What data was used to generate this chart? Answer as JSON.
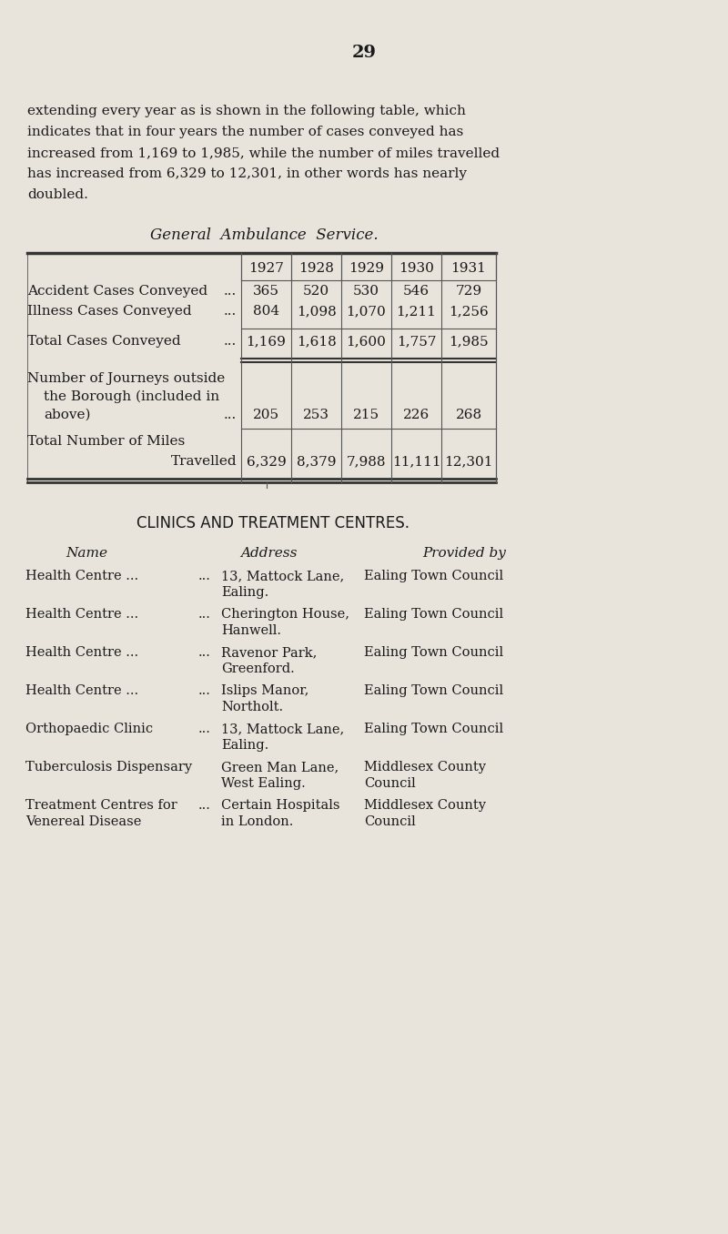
{
  "page_number": "29",
  "bg_color": "#e8e4dc",
  "text_color": "#1a1a1a",
  "intro_text": "extending every year as is shown in the following table, which\nindicates that in four years the number of cases conveyed has\nincreased from 1,169 to 1,985, while the number of miles travelled\nhas increased from 6,329 to 12,301, in other words has nearly\ndoubled.",
  "table_title": "General  Ambulance  Service.",
  "table_years": [
    "1927",
    "1928",
    "1929",
    "1930",
    "1931"
  ],
  "table_rows": [
    {
      "label": "Accident Cases Conveyed",
      "label_suffix": "...",
      "values": [
        "365",
        "520",
        "530",
        "546",
        "729"
      ]
    },
    {
      "label": "Illness Cases Conveyed",
      "label_suffix": "...",
      "values": [
        "804",
        "1,098",
        "1,070",
        "1,211",
        "1,256"
      ]
    },
    {
      "label": "Total Cases Conveyed",
      "label_suffix": "...",
      "values": [
        "1,169",
        "1,618",
        "1,600",
        "1,757",
        "1,985"
      ]
    },
    {
      "label": "Number of Journeys outside\n  the Borough (included in\n  above)",
      "label_suffix": "...",
      "values": [
        "205",
        "253",
        "215",
        "226",
        "268"
      ]
    },
    {
      "label": "Total Number of Miles\n                          Travelled",
      "label_suffix": "",
      "values": [
        "6,329",
        "8,379",
        "7,988",
        "11,111",
        "12,301"
      ]
    }
  ],
  "clinics_title": "CLINICS AND TREATMENT CENTRES.",
  "clinics_headers": [
    "Name",
    "Address",
    "Provided by"
  ],
  "clinics_rows": [
    {
      "name": "Health Centre ...",
      "name2": "",
      "dots": "...",
      "address": "13, Mattock Lane,\n    Ealing.",
      "provided_by": "Ealing Town Council"
    },
    {
      "name": "Health Centre ...",
      "name2": "",
      "dots": "...",
      "address": "Cherington House,\n    Hanwell.",
      "provided_by": "Ealing Town Council"
    },
    {
      "name": "Health Centre ...",
      "name2": "",
      "dots": "...",
      "address": "Ravenor Park,\n    Greenford.",
      "provided_by": "Ealing Town Council"
    },
    {
      "name": "Health Centre ...",
      "name2": "",
      "dots": "...",
      "address": "Islips Manor,\n    Northolt.",
      "provided_by": "Ealing Town Council"
    },
    {
      "name": "Orthopaedic Clinic",
      "name2": "",
      "dots": "...",
      "address": "13, Mattock Lane,\n    Ealing.",
      "provided_by": "Ealing Town Council"
    },
    {
      "name": "Tuberculosis Dispensary",
      "name2": "",
      "dots": "",
      "address": "Green Man Lane,\n    West Ealing.",
      "provided_by": "Middlesex County\n    Council"
    },
    {
      "name": "Treatment Centres for\n  Venereal Disease",
      "name2": "",
      "dots": "...",
      "address": "Certain Hospitals\n    in London.",
      "provided_by": "Middlesex County\n    Council"
    }
  ]
}
